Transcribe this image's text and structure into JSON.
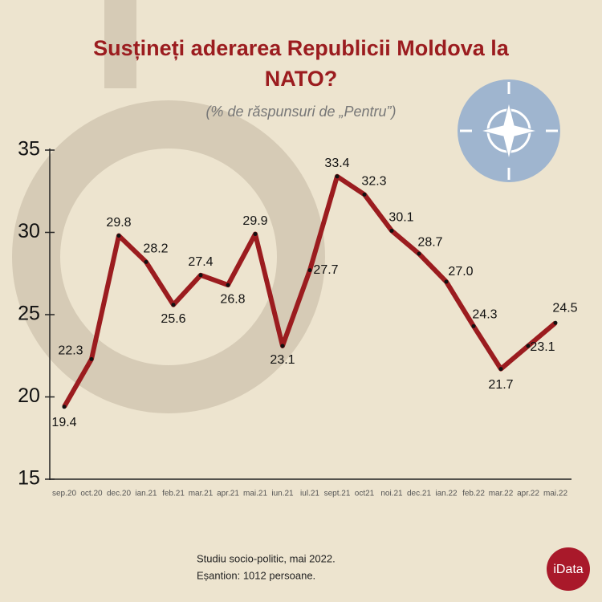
{
  "chart_data": {
    "type": "line",
    "title": "Susțineți aderarea Republicii Moldova la NATO?",
    "subtitle": "(% de răspunsuri de „Pentru”)",
    "categories": [
      "sep.20",
      "oct.20",
      "dec.20",
      "ian.21",
      "feb.21",
      "mar.21",
      "apr.21",
      "mai.21",
      "iun.21",
      "iul.21",
      "sept.21",
      "oct21",
      "noi.21",
      "dec.21",
      "ian.22",
      "feb.22",
      "mar.22",
      "apr.22",
      "mai.22"
    ],
    "values": [
      19.4,
      22.3,
      29.8,
      28.2,
      25.6,
      27.4,
      26.8,
      29.9,
      23.1,
      27.7,
      33.4,
      32.3,
      30.1,
      28.7,
      27.0,
      24.3,
      21.7,
      23.1,
      24.5
    ],
    "value_labels": [
      "19.4",
      "22.3",
      "29.8",
      "28.2",
      "25.6",
      "27.4",
      "26.8",
      "29.9",
      "23.1",
      "27.7",
      "33.4",
      "32.3",
      "30.1",
      "28.7",
      "27.0",
      "24.3",
      "21.7",
      "23.1",
      "24.5"
    ],
    "color": "#9b1c1f",
    "ylim": [
      15,
      35
    ],
    "yticks": [
      15,
      20,
      25,
      30,
      35
    ],
    "footer": [
      "Studiu socio-politic, mai 2022.",
      "Eșantion: 1012 persoane."
    ],
    "logo": "iData"
  }
}
